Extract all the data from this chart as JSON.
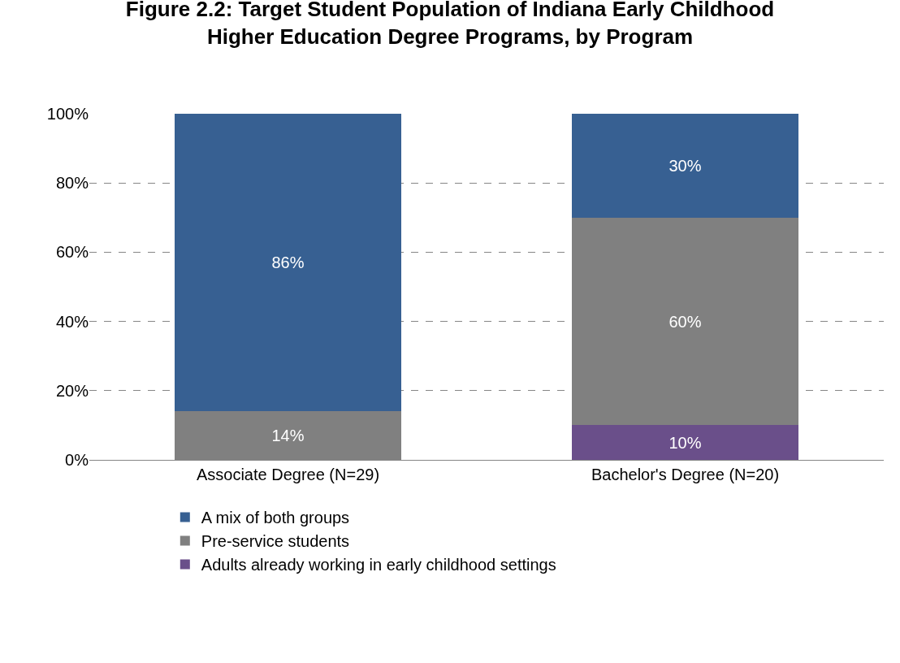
{
  "chart_data": {
    "type": "bar",
    "title": "Figure 2.2: Target Student Population of Indiana Early Childhood\nHigher Education Degree Programs, by Program",
    "categories": [
      "Associate Degree (N=29)",
      "Bachelor's Degree (N=20)"
    ],
    "stacked": true,
    "series": [
      {
        "name": "Adults already working in early childhood settings",
        "color": "#6a4f8a",
        "values": [
          null,
          10
        ],
        "value_labels": [
          null,
          "10%"
        ]
      },
      {
        "name": "Pre-service students",
        "color": "#808080",
        "values": [
          14,
          60
        ],
        "value_labels": [
          "14%",
          "60%"
        ]
      },
      {
        "name": "A mix of both groups",
        "color": "#376092",
        "values": [
          86,
          30
        ],
        "value_labels": [
          "86%",
          "30%"
        ]
      }
    ],
    "ylim": [
      0,
      100
    ],
    "yticks": [
      {
        "value": 0,
        "label": "0%"
      },
      {
        "value": 20,
        "label": "20%"
      },
      {
        "value": 40,
        "label": "40%"
      },
      {
        "value": 60,
        "label": "60%"
      },
      {
        "value": 80,
        "label": "80%"
      },
      {
        "value": 100,
        "label": "100%"
      }
    ],
    "grid": "y",
    "line_style": "dashed",
    "legend": "bottom"
  }
}
